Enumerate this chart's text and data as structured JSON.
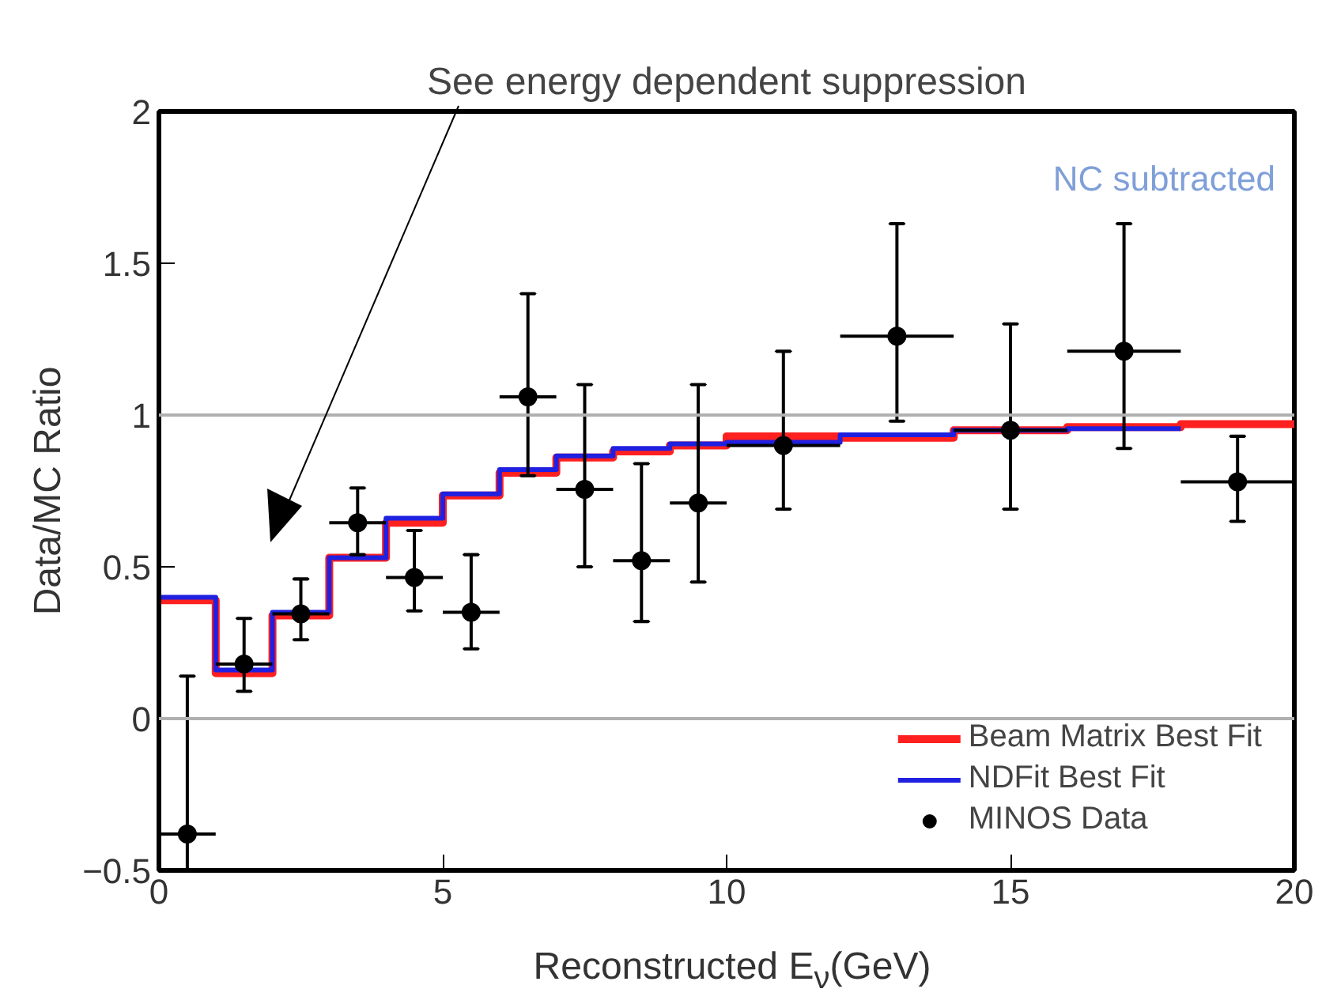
{
  "chart_data": {
    "type": "scatter",
    "xlabel": "Reconstructed E$_{ν}$(GeV)",
    "ylabel": "Data/MC Ratio",
    "annotations": [
      "See energy dependent suppression",
      "NC subtracted"
    ],
    "xlim": [
      0,
      20
    ],
    "ylim": [
      -0.5,
      2
    ],
    "xticks": [
      0,
      5,
      10,
      15,
      20
    ],
    "yticks": [
      -0.5,
      0,
      0.5,
      1,
      1.5,
      2
    ],
    "grid": false,
    "legend": "bottom right",
    "ref_lines": [
      {
        "axis": "y",
        "value": 0,
        "color": "#b0b0b0"
      },
      {
        "axis": "y",
        "value": 1,
        "color": "#b0b0b0"
      }
    ],
    "series": [
      {
        "name": "Beam Matrix Best Fit",
        "type": "step",
        "color": "#ff2020",
        "x": [
          0,
          1,
          2,
          3,
          4,
          5,
          6,
          7,
          8,
          9,
          10,
          12,
          14,
          16,
          18,
          20
        ],
        "values": [
          0.39,
          0.15,
          0.34,
          0.53,
          0.645,
          0.735,
          0.81,
          0.86,
          0.88,
          0.9,
          0.93,
          0.925,
          0.95,
          0.96,
          0.97,
          0.97
        ]
      },
      {
        "name": "NDFit Best Fit",
        "type": "step",
        "color": "#2020e0",
        "x": [
          0,
          1,
          2,
          3,
          4,
          5,
          6,
          7,
          8,
          9,
          10,
          12,
          14,
          16,
          18
        ],
        "values": [
          0.4,
          0.16,
          0.35,
          0.53,
          0.66,
          0.74,
          0.82,
          0.865,
          0.89,
          0.905,
          0.91,
          0.935,
          0.95,
          0.955,
          0.955
        ]
      },
      {
        "name": "MINOS Data",
        "color": "#000000",
        "marker": "circle",
        "x": [
          0.5,
          1.5,
          2.5,
          3.5,
          4.5,
          5.5,
          6.5,
          7.5,
          8.5,
          9.5,
          11,
          13,
          15,
          17,
          19
        ],
        "values": [
          -0.38,
          0.18,
          0.345,
          0.645,
          0.465,
          0.35,
          1.06,
          0.755,
          0.52,
          0.71,
          0.9,
          1.26,
          0.95,
          1.21,
          0.78
        ],
        "errors": [
          [
            -0.5,
            0.14
          ],
          [
            0.09,
            0.33
          ],
          [
            0.26,
            0.46
          ],
          [
            0.54,
            0.76
          ],
          [
            0.355,
            0.62
          ],
          [
            0.23,
            0.54
          ],
          [
            0.8,
            1.4
          ],
          [
            0.5,
            1.1
          ],
          [
            0.32,
            0.84
          ],
          [
            0.45,
            1.1
          ],
          [
            0.69,
            1.21
          ],
          [
            0.98,
            1.63
          ],
          [
            0.69,
            1.3
          ],
          [
            0.89,
            1.63
          ],
          [
            0.65,
            0.93
          ]
        ],
        "xerrors": [
          0.5,
          0.5,
          0.5,
          0.5,
          0.5,
          0.5,
          0.5,
          0.5,
          0.5,
          0.5,
          1,
          1,
          1,
          1,
          1
        ]
      }
    ]
  }
}
